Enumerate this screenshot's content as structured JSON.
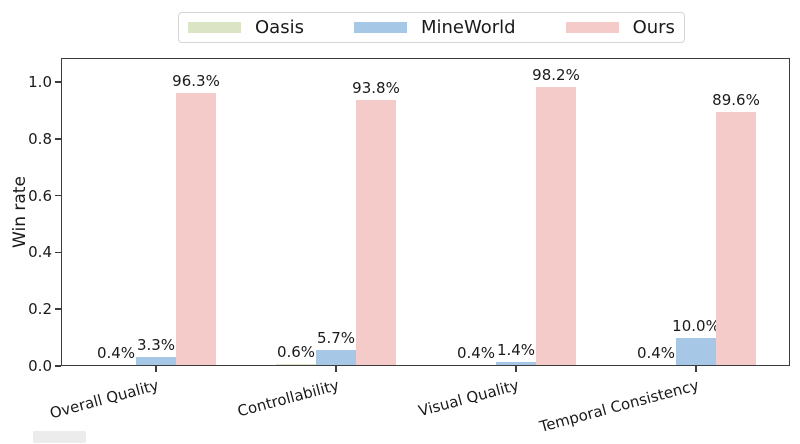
{
  "chart_data": {
    "type": "bar",
    "title": "",
    "xlabel": "",
    "ylabel": "Win rate",
    "categories": [
      "Overall Quality",
      "Controllability",
      "Visual Quality",
      "Temporal Consistency"
    ],
    "series": [
      {
        "name": "Oasis",
        "color": "#dbe5c6",
        "values_pct": [
          0.4,
          0.6,
          0.4,
          0.4
        ],
        "labels": [
          "0.4%",
          "0.6%",
          "0.4%",
          "0.4%"
        ]
      },
      {
        "name": "MineWorld",
        "color": "#a6c8e6",
        "values_pct": [
          3.3,
          5.7,
          1.4,
          10.0
        ],
        "labels": [
          "3.3%",
          "5.7%",
          "1.4%",
          "10.0%"
        ]
      },
      {
        "name": "Ours",
        "color": "#f4cbc9",
        "values_pct": [
          96.3,
          93.8,
          98.2,
          89.6
        ],
        "labels": [
          "96.3%",
          "93.8%",
          "98.2%",
          "89.6%"
        ]
      }
    ],
    "yticks": [
      "0.0",
      "0.2",
      "0.4",
      "0.6",
      "0.8",
      "1.0"
    ],
    "ylim": [
      0.0,
      1.08
    ],
    "grid": false,
    "legend_position": "top-center-outside",
    "axis_color": "#3c3c3c",
    "text_color": "#1a1a1a"
  }
}
